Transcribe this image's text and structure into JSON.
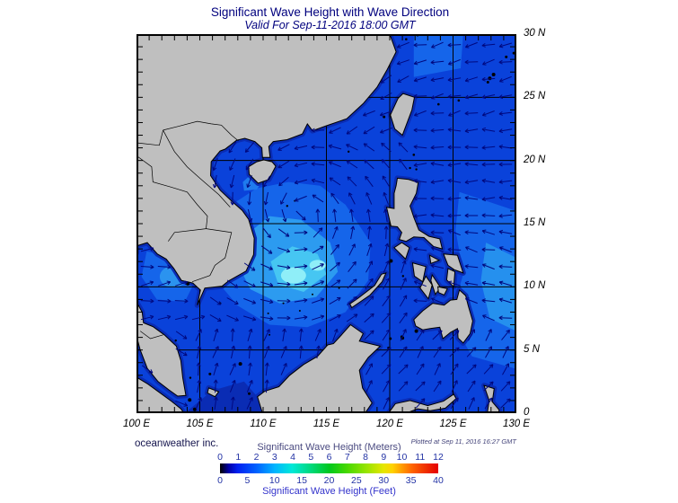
{
  "title": "Significant Wave Height with Wave Direction",
  "subtitle": "Valid For Sep-11-2016 18:00 GMT",
  "branding": "oceanweather inc.",
  "plotted_note": "Plotted at Sep 11, 2016 16:27 GMT",
  "axes": {
    "lon_labels": [
      "100 E",
      "105 E",
      "110 E",
      "115 E",
      "120 E",
      "125 E",
      "130 E"
    ],
    "lat_labels": [
      "30 N",
      "25 N",
      "20 N",
      "15 N",
      "10 N",
      "5 N",
      "0"
    ]
  },
  "legend": {
    "meters_title": "Significant Wave Height (Meters)",
    "feet_title": "Significant Wave Height (Feet)",
    "meters_ticks": [
      "0",
      "1",
      "2",
      "3",
      "4",
      "5",
      "6",
      "7",
      "8",
      "9",
      "10",
      "11",
      "12"
    ],
    "feet_ticks": [
      "0",
      "5",
      "10",
      "15",
      "20",
      "25",
      "30",
      "35",
      "40"
    ],
    "gradient_stops": [
      [
        "0%",
        "#000000"
      ],
      [
        "4%",
        "#0000a8"
      ],
      [
        "8%",
        "#0020f0"
      ],
      [
        "17%",
        "#0064ff"
      ],
      [
        "25%",
        "#00b4ff"
      ],
      [
        "33%",
        "#00e8d8"
      ],
      [
        "42%",
        "#00d878"
      ],
      [
        "50%",
        "#00c81e"
      ],
      [
        "58%",
        "#46d800"
      ],
      [
        "67%",
        "#96e400"
      ],
      [
        "75%",
        "#e6e600"
      ],
      [
        "79%",
        "#ffd200"
      ],
      [
        "83%",
        "#ffa000"
      ],
      [
        "88%",
        "#ff6400"
      ],
      [
        "94%",
        "#f03200"
      ],
      [
        "100%",
        "#e60000"
      ]
    ]
  },
  "map_colors": {
    "sea_base": "#0a42da",
    "sea_light": "#1565ea",
    "sea_cyan": "#2c9bf0",
    "sea_bright_cyan": "#46c6f2",
    "sea_pale": "#8feef8",
    "coastal_dark": "#0a2cb4",
    "land": "#bfbfbf",
    "arrow": "#00087f",
    "title_text": "#00007e"
  }
}
